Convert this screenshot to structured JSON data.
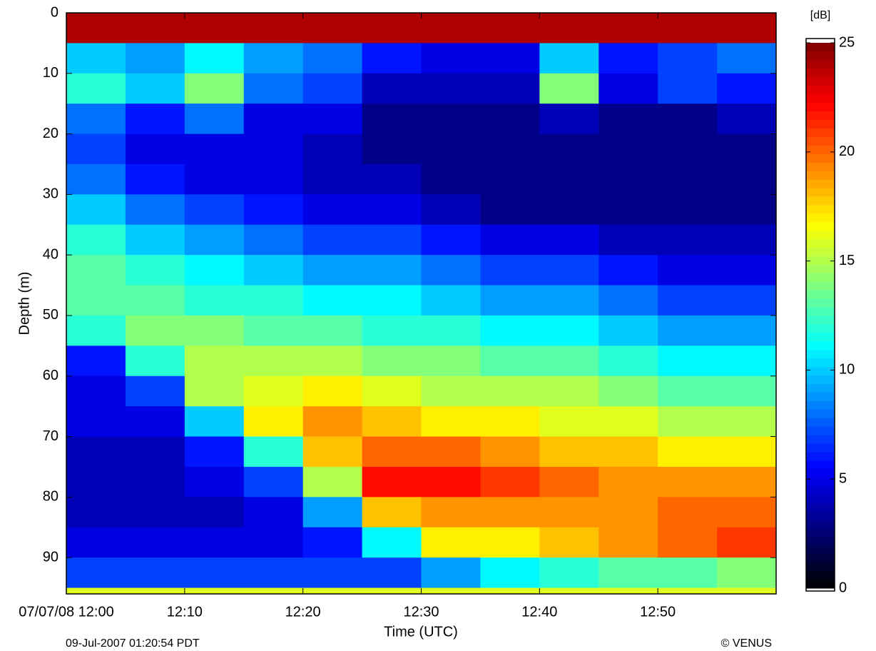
{
  "chart_data": {
    "type": "heatmap",
    "x_label": "Time (UTC)",
    "y_label": "Depth (m)",
    "colorbar_label": "[dB]",
    "footer_left": "09-Jul-2007 01:20:54 PDT",
    "footer_right": "© VENUS",
    "xlim": [
      0,
      60
    ],
    "ylim": [
      0,
      96
    ],
    "y_reversed": true,
    "xticks": [
      {
        "value": 0,
        "label": "07/07/08 12:00"
      },
      {
        "value": 10,
        "label": "12:10"
      },
      {
        "value": 20,
        "label": "12:20"
      },
      {
        "value": 30,
        "label": "12:30"
      },
      {
        "value": 40,
        "label": "12:40"
      },
      {
        "value": 50,
        "label": "12:50"
      }
    ],
    "yticks": [
      0,
      10,
      20,
      30,
      40,
      50,
      60,
      70,
      80,
      90
    ],
    "clim": [
      0,
      25
    ],
    "cticks": [
      0,
      5,
      10,
      15,
      20,
      25
    ],
    "colormap": [
      "#000000",
      "#00007f",
      "#0000ff",
      "#007fff",
      "#00ffff",
      "#7fff7f",
      "#ffff00",
      "#ff7f00",
      "#ff0000",
      "#7f0000"
    ],
    "x_edges": [
      0,
      5,
      10,
      15,
      20,
      25,
      30,
      35,
      40,
      45,
      50,
      55,
      60
    ],
    "y_edges": [
      0,
      5,
      10,
      15,
      20,
      25,
      30,
      35,
      40,
      45,
      50,
      55,
      60,
      65,
      70,
      75,
      80,
      85,
      90,
      95,
      96
    ],
    "values": [
      [
        24,
        24,
        24,
        24,
        24,
        24,
        24,
        24,
        24,
        24,
        24,
        24
      ],
      [
        10,
        9,
        11,
        9,
        8,
        6,
        5,
        5,
        10,
        6,
        7,
        8
      ],
      [
        12,
        10,
        14,
        8,
        7,
        4,
        4,
        4,
        14,
        5,
        7,
        6
      ],
      [
        8,
        6,
        8,
        5,
        5,
        3,
        3,
        3,
        4,
        3,
        3,
        4
      ],
      [
        7,
        5,
        5,
        5,
        4,
        3,
        3,
        3,
        3,
        3,
        3,
        3
      ],
      [
        8,
        6,
        5,
        5,
        4,
        4,
        3,
        3,
        3,
        3,
        3,
        3
      ],
      [
        10,
        8,
        7,
        6,
        5,
        5,
        4,
        3,
        3,
        3,
        3,
        3
      ],
      [
        12,
        10,
        9,
        8,
        7,
        7,
        6,
        5,
        5,
        4,
        4,
        4
      ],
      [
        13,
        12,
        11,
        10,
        9,
        9,
        8,
        7,
        7,
        6,
        5,
        5
      ],
      [
        13,
        13,
        12,
        12,
        11,
        11,
        10,
        9,
        9,
        8,
        7,
        7
      ],
      [
        12,
        14,
        14,
        13,
        13,
        12,
        12,
        11,
        11,
        10,
        9,
        9
      ],
      [
        6,
        12,
        15,
        15,
        15,
        14,
        14,
        13,
        13,
        12,
        11,
        11
      ],
      [
        5,
        7,
        15,
        16,
        17,
        16,
        15,
        15,
        15,
        14,
        13,
        13
      ],
      [
        5,
        5,
        10,
        17,
        19,
        18,
        17,
        17,
        16,
        16,
        15,
        15
      ],
      [
        4,
        4,
        6,
        12,
        18,
        20,
        20,
        19,
        18,
        18,
        17,
        17
      ],
      [
        4,
        4,
        5,
        7,
        15,
        22,
        22,
        21,
        20,
        19,
        19,
        19
      ],
      [
        4,
        4,
        4,
        5,
        9,
        18,
        19,
        19,
        19,
        19,
        20,
        20
      ],
      [
        5,
        5,
        5,
        5,
        6,
        11,
        17,
        17,
        18,
        19,
        20,
        21
      ],
      [
        7,
        7,
        7,
        7,
        7,
        7,
        9,
        11,
        12,
        13,
        13,
        14
      ],
      [
        16,
        16,
        16,
        16,
        16,
        16,
        16,
        16,
        16,
        16,
        16,
        16
      ]
    ]
  }
}
